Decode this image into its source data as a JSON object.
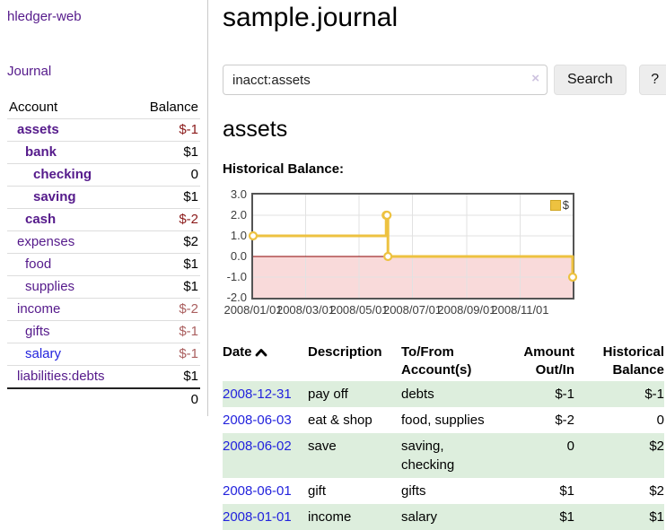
{
  "colors": {
    "link_purple": "#551a8b",
    "link_blue": "#2323dd",
    "negative_strong": "#8b1a1a",
    "negative_muted": "#aa5f5f",
    "row_green": "#ddeedd",
    "series_gold": "#edc240",
    "negative_region_pink": "#f9dada",
    "zero_line_red": "#8b0000",
    "grid_gray": "#e2e2e2",
    "chart_border": "#545454"
  },
  "sidebar": {
    "app_title": "hledger-web",
    "journal_label": "Journal",
    "accounts_header": {
      "account": "Account",
      "balance": "Balance"
    },
    "accounts": [
      {
        "name": "assets",
        "depth": 0,
        "balance": "$-1",
        "bold": true,
        "neg": "strong",
        "link": "purple"
      },
      {
        "name": "bank",
        "depth": 1,
        "balance": "$1",
        "bold": true,
        "neg": null,
        "link": "purple"
      },
      {
        "name": "checking",
        "depth": 2,
        "balance": "0",
        "bold": true,
        "neg": null,
        "link": "purple"
      },
      {
        "name": "saving",
        "depth": 2,
        "balance": "$1",
        "bold": true,
        "neg": null,
        "link": "purple"
      },
      {
        "name": "cash",
        "depth": 1,
        "balance": "$-2",
        "bold": true,
        "neg": "strong",
        "link": "purple"
      },
      {
        "name": "expenses",
        "depth": 0,
        "balance": "$2",
        "bold": false,
        "neg": null,
        "link": "purple"
      },
      {
        "name": "food",
        "depth": 1,
        "balance": "$1",
        "bold": false,
        "neg": null,
        "link": "purple"
      },
      {
        "name": "supplies",
        "depth": 1,
        "balance": "$1",
        "bold": false,
        "neg": null,
        "link": "purple"
      },
      {
        "name": "income",
        "depth": 0,
        "balance": "$-2",
        "bold": false,
        "neg": "muted",
        "link": "purple"
      },
      {
        "name": "gifts",
        "depth": 1,
        "balance": "$-1",
        "bold": false,
        "neg": "muted",
        "link": "purple"
      },
      {
        "name": "salary",
        "depth": 1,
        "balance": "$-1",
        "bold": false,
        "neg": "muted",
        "link": "blue"
      },
      {
        "name": "liabilities:debts",
        "depth": 0,
        "balance": "$1",
        "bold": false,
        "neg": null,
        "link": "purple"
      }
    ],
    "total": "0"
  },
  "main": {
    "title": "sample.journal",
    "search": {
      "value": "inacct:assets",
      "clear_icon": "×",
      "button_label": "Search",
      "help_label": "?"
    },
    "account_heading": "assets",
    "chart_label": "Historical Balance:"
  },
  "chart_data": {
    "type": "line",
    "title": "Historical Balance",
    "step": true,
    "legend": [
      {
        "label": "$",
        "color": "#edc240"
      }
    ],
    "legend_position": "top-right",
    "points": [
      {
        "date": "2008-01-01",
        "value": 1
      },
      {
        "date": "2008-06-01",
        "value": 2
      },
      {
        "date": "2008-06-02",
        "value": 2
      },
      {
        "date": "2008-06-03",
        "value": 0
      },
      {
        "date": "2008-12-31",
        "value": -1
      }
    ],
    "x_range": [
      "2008-01-01",
      "2008-12-31"
    ],
    "ylim": [
      -2,
      3
    ],
    "y_ticks": [
      "3.0",
      "2.0",
      "1.0",
      "0.0",
      "-1.0",
      "-2.0"
    ],
    "x_ticks": [
      "2008/01/01",
      "2008/03/01",
      "2008/05/01",
      "2008/07/01",
      "2008/09/01",
      "2008/11/01"
    ],
    "grid": true,
    "negative_region_shaded": true
  },
  "register": {
    "headers": [
      "Date",
      "Description",
      "To/From Account(s)",
      "Amount Out/In",
      "Historical Balance"
    ],
    "sort_column": "Date",
    "sort_direction": "ascending",
    "rows": [
      {
        "date": "2008-12-31",
        "description": "pay off",
        "accounts": "debts",
        "amount": "$-1",
        "balance": "$-1",
        "amount_neg": true,
        "balance_neg": true
      },
      {
        "date": "2008-06-03",
        "description": "eat & shop",
        "accounts": "food, supplies",
        "amount": "$-2",
        "balance": "0",
        "amount_neg": true,
        "balance_neg": false
      },
      {
        "date": "2008-06-02",
        "description": "save",
        "accounts": "saving, checking",
        "amount": "0",
        "balance": "$2",
        "amount_neg": false,
        "balance_neg": false
      },
      {
        "date": "2008-06-01",
        "description": "gift",
        "accounts": "gifts",
        "amount": "$1",
        "balance": "$2",
        "amount_neg": false,
        "balance_neg": false
      },
      {
        "date": "2008-01-01",
        "description": "income",
        "accounts": "salary",
        "amount": "$1",
        "balance": "$1",
        "amount_neg": false,
        "balance_neg": false
      }
    ]
  }
}
